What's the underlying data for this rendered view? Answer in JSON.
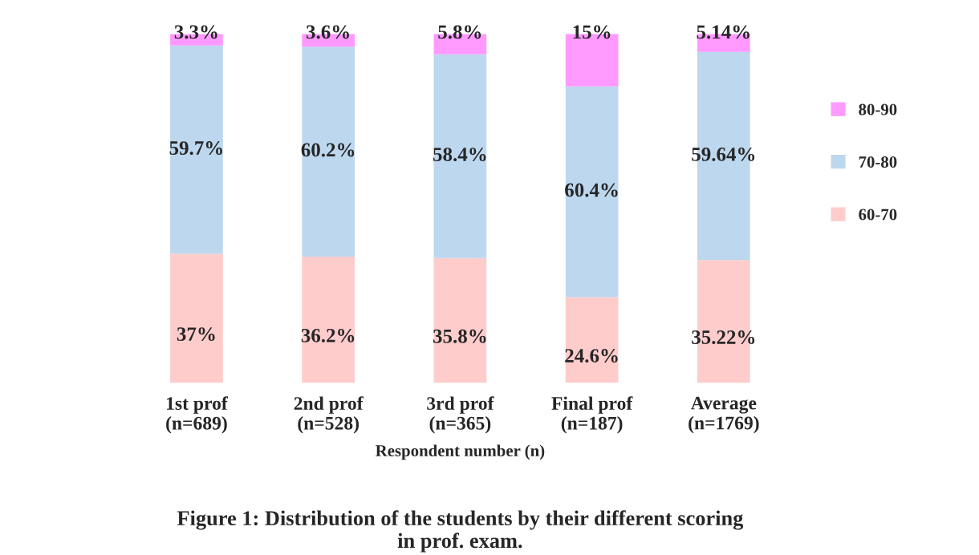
{
  "chart_data": {
    "type": "bar",
    "stacked": true,
    "xlabel": "Respondent number (n)",
    "categories": [
      "1st prof\n(n=689)",
      "2nd prof\n(n=528)",
      "3rd prof\n(n=365)",
      "Final prof\n(n=187)",
      "Average\n(n=1769)"
    ],
    "series": [
      {
        "name": "60-70",
        "color": "#ffcccc",
        "values": [
          37,
          36.2,
          35.8,
          24.6,
          35.22
        ],
        "value_labels": [
          "37%",
          "36.2%",
          "35.8%",
          "24.6%",
          "35.22%"
        ]
      },
      {
        "name": "70-80",
        "color": "#bdd7ee",
        "values": [
          59.7,
          60.2,
          58.4,
          60.4,
          59.64
        ],
        "value_labels": [
          "59.7%",
          "60.2%",
          "58.4%",
          "60.4%",
          "59.64%"
        ]
      },
      {
        "name": "80-90",
        "color": "#ff99ff",
        "values": [
          3.3,
          3.6,
          5.8,
          15,
          5.14
        ],
        "value_labels": [
          "3.3%",
          "3.6%",
          "5.8%",
          "15%",
          "5.14%"
        ]
      }
    ],
    "legend": "right",
    "grid": false,
    "annotations": [
      "Figure 1: Distribution of the students by their different scoring\nin prof. exam."
    ]
  }
}
